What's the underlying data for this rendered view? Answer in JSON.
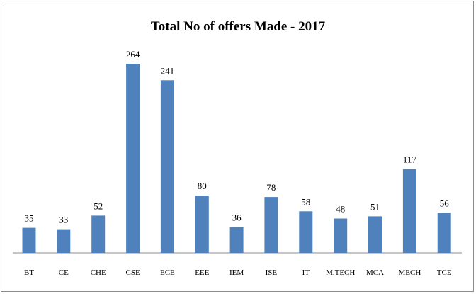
{
  "chart_data": {
    "type": "bar",
    "title": "Total No of offers Made - 2017",
    "categories": [
      "BT",
      "CE",
      "CHE",
      "CSE",
      "ECE",
      "EEE",
      "IEM",
      "ISE",
      "IT",
      "M.TECH",
      "MCA",
      "MECH",
      "TCE"
    ],
    "values": [
      35,
      33,
      52,
      264,
      241,
      80,
      36,
      78,
      58,
      48,
      51,
      117,
      56
    ],
    "bar_color": "#4f81bd",
    "data_labels": true,
    "grid": false,
    "legend": "none"
  }
}
